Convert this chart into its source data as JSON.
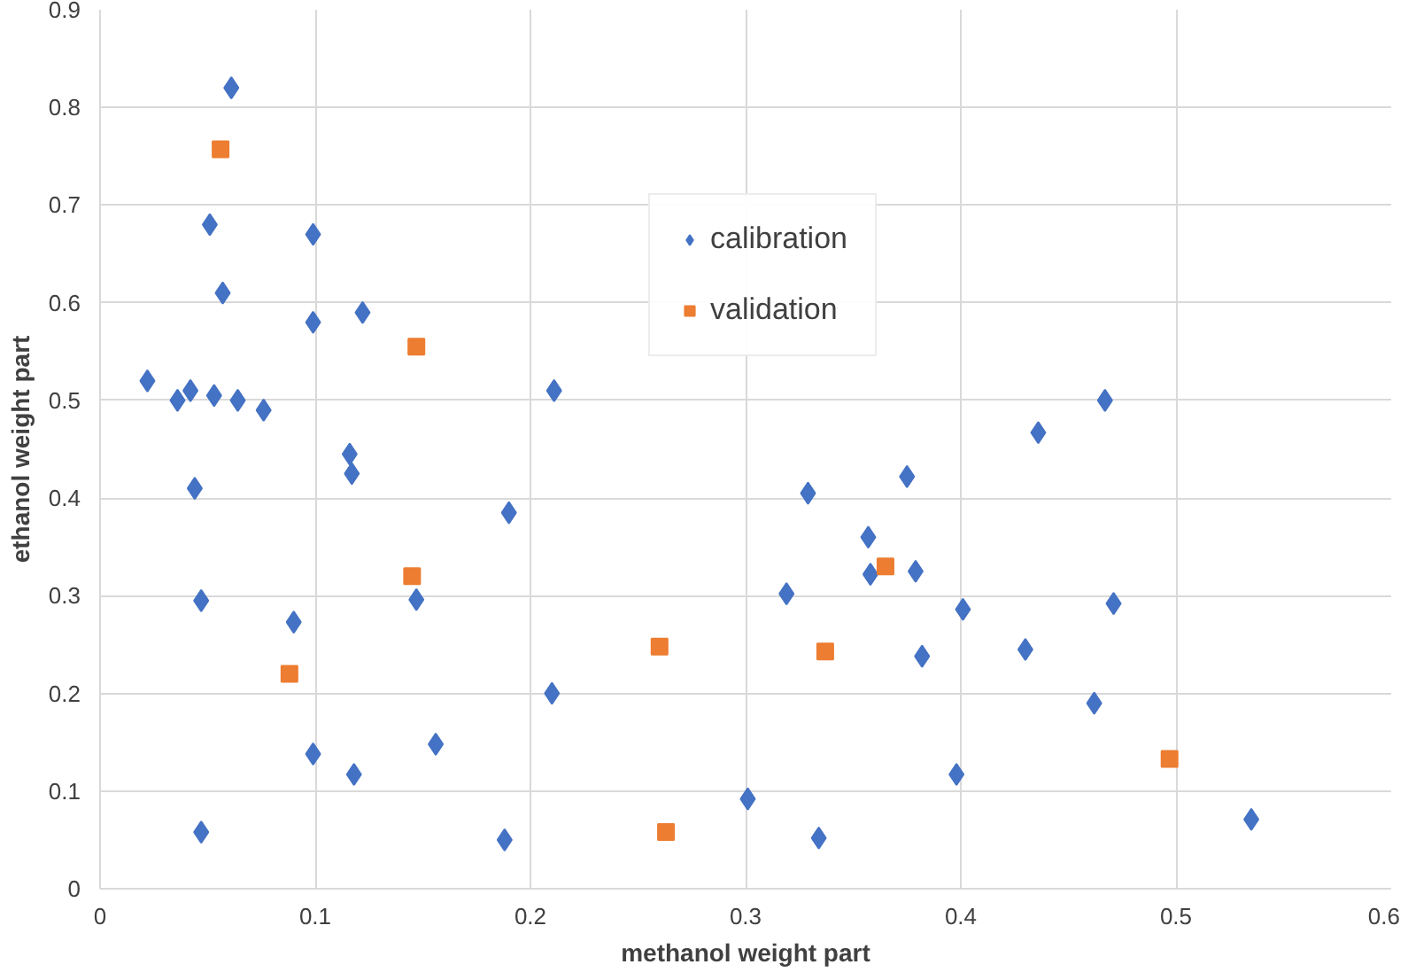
{
  "chart_data": {
    "type": "scatter",
    "xlabel": "methanol weight part",
    "ylabel": "ethanol weight part",
    "xlim": [
      0,
      0.6
    ],
    "xticks": [
      0,
      0.1,
      0.2,
      0.3,
      0.4,
      0.5,
      0.6
    ],
    "ylim": [
      0,
      0.9
    ],
    "yticks": [
      0,
      0.1,
      0.2,
      0.3,
      0.4,
      0.5,
      0.6,
      0.7,
      0.8,
      0.9
    ],
    "grid": true,
    "legend": "top right",
    "series": [
      {
        "name": "calibration",
        "color": "#4472c4",
        "marker": "diamond",
        "x": [
          0.061,
          0.051,
          0.099,
          0.057,
          0.099,
          0.122,
          0.022,
          0.036,
          0.042,
          0.053,
          0.064,
          0.076,
          0.211,
          0.116,
          0.117,
          0.044,
          0.19,
          0.047,
          0.09,
          0.147,
          0.099,
          0.118,
          0.156,
          0.21,
          0.188,
          0.047,
          0.301,
          0.329,
          0.319,
          0.357,
          0.358,
          0.375,
          0.379,
          0.382,
          0.401,
          0.398,
          0.334,
          0.436,
          0.467,
          0.43,
          0.471,
          0.462,
          0.535
        ],
        "values": [
          0.82,
          0.68,
          0.67,
          0.61,
          0.58,
          0.59,
          0.52,
          0.5,
          0.51,
          0.505,
          0.5,
          0.49,
          0.51,
          0.445,
          0.425,
          0.41,
          0.385,
          0.295,
          0.273,
          0.296,
          0.138,
          0.117,
          0.148,
          0.2,
          0.05,
          0.058,
          0.092,
          0.405,
          0.302,
          0.36,
          0.322,
          0.422,
          0.325,
          0.238,
          0.286,
          0.117,
          0.052,
          0.467,
          0.5,
          0.245,
          0.292,
          0.19,
          0.071
        ]
      },
      {
        "name": "validation",
        "color": "#ed7d31",
        "marker": "square",
        "x": [
          0.056,
          0.147,
          0.145,
          0.088,
          0.26,
          0.263,
          0.337,
          0.365,
          0.497
        ],
        "values": [
          0.757,
          0.555,
          0.32,
          0.22,
          0.248,
          0.058,
          0.243,
          0.33,
          0.133
        ]
      }
    ]
  }
}
